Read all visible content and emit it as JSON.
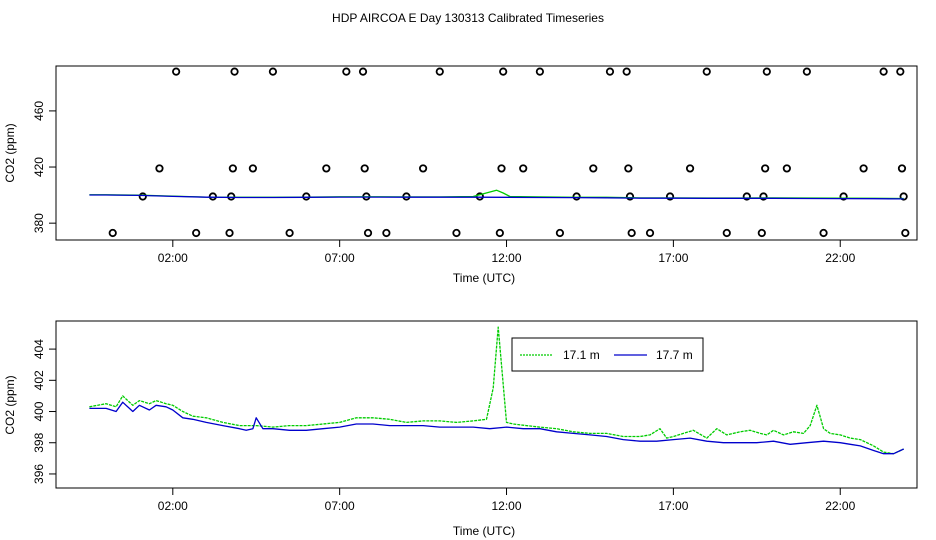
{
  "title": "HDP AIRCOA E  Day 130313  Calibrated Timeseries",
  "colors": {
    "green": "#00cc00",
    "blue": "#0000cc",
    "black": "#000000"
  },
  "chart_data": [
    {
      "type": "line+scatter",
      "xlabel": "Time (UTC)",
      "ylabel": "CO2 (ppm)",
      "xlim": [
        -1.5,
        24.3
      ],
      "ylim": [
        368,
        492
      ],
      "xticks": [
        2,
        7,
        12,
        17,
        22
      ],
      "xtick_labels": [
        "02:00",
        "07:00",
        "12:00",
        "17:00",
        "22:00"
      ],
      "yticks": [
        380,
        420,
        460
      ],
      "ytick_labels": [
        "380",
        "420",
        "460"
      ],
      "calibration_points": [
        {
          "x": 0.2,
          "y": 373
        },
        {
          "x": 1.1,
          "y": 399
        },
        {
          "x": 1.6,
          "y": 419
        },
        {
          "x": 2.1,
          "y": 488
        },
        {
          "x": 2.7,
          "y": 373
        },
        {
          "x": 3.2,
          "y": 399
        },
        {
          "x": 3.7,
          "y": 373
        },
        {
          "x": 3.75,
          "y": 399
        },
        {
          "x": 3.8,
          "y": 419
        },
        {
          "x": 3.85,
          "y": 488
        },
        {
          "x": 4.4,
          "y": 419
        },
        {
          "x": 5.0,
          "y": 488
        },
        {
          "x": 5.5,
          "y": 373
        },
        {
          "x": 6.0,
          "y": 399
        },
        {
          "x": 6.6,
          "y": 419
        },
        {
          "x": 7.2,
          "y": 488
        },
        {
          "x": 7.7,
          "y": 488
        },
        {
          "x": 7.75,
          "y": 419
        },
        {
          "x": 7.8,
          "y": 399
        },
        {
          "x": 7.85,
          "y": 373
        },
        {
          "x": 8.4,
          "y": 373
        },
        {
          "x": 9.0,
          "y": 399
        },
        {
          "x": 9.5,
          "y": 419
        },
        {
          "x": 10.0,
          "y": 488
        },
        {
          "x": 10.5,
          "y": 373
        },
        {
          "x": 11.2,
          "y": 399
        },
        {
          "x": 11.8,
          "y": 373
        },
        {
          "x": 11.85,
          "y": 419
        },
        {
          "x": 11.9,
          "y": 488
        },
        {
          "x": 12.5,
          "y": 419
        },
        {
          "x": 13.0,
          "y": 488
        },
        {
          "x": 13.6,
          "y": 373
        },
        {
          "x": 14.1,
          "y": 399
        },
        {
          "x": 14.6,
          "y": 419
        },
        {
          "x": 15.1,
          "y": 488
        },
        {
          "x": 15.6,
          "y": 488
        },
        {
          "x": 15.65,
          "y": 419
        },
        {
          "x": 15.7,
          "y": 399
        },
        {
          "x": 15.75,
          "y": 373
        },
        {
          "x": 16.3,
          "y": 373
        },
        {
          "x": 16.9,
          "y": 399
        },
        {
          "x": 17.5,
          "y": 419
        },
        {
          "x": 18.0,
          "y": 488
        },
        {
          "x": 18.6,
          "y": 373
        },
        {
          "x": 19.2,
          "y": 399
        },
        {
          "x": 19.65,
          "y": 373
        },
        {
          "x": 19.7,
          "y": 399
        },
        {
          "x": 19.75,
          "y": 419
        },
        {
          "x": 19.8,
          "y": 488
        },
        {
          "x": 20.4,
          "y": 419
        },
        {
          "x": 21.0,
          "y": 488
        },
        {
          "x": 21.5,
          "y": 373
        },
        {
          "x": 22.1,
          "y": 399
        },
        {
          "x": 22.7,
          "y": 419
        },
        {
          "x": 23.3,
          "y": 488
        },
        {
          "x": 23.8,
          "y": 488
        },
        {
          "x": 23.85,
          "y": 419
        },
        {
          "x": 23.9,
          "y": 399
        },
        {
          "x": 23.95,
          "y": 373
        }
      ],
      "series": [
        {
          "name": "17.1 m",
          "color": "#00cc00",
          "x": [
            -0.5,
            0,
            1,
            2,
            3,
            4,
            5,
            6,
            7,
            8,
            9,
            10,
            11,
            11.7,
            11.9,
            12.1,
            13,
            14,
            15,
            16,
            17,
            18,
            19,
            20,
            21,
            22,
            23,
            23.9
          ],
          "y": [
            400.2,
            400.2,
            399.9,
            399.3,
            398.6,
            398.4,
            398.4,
            398.6,
            398.8,
            398.8,
            398.7,
            398.7,
            399,
            403.5,
            401.5,
            399,
            398.7,
            398.4,
            398.4,
            398,
            398,
            397.9,
            397.9,
            398,
            397.9,
            397.8,
            397.7,
            397.6
          ]
        },
        {
          "name": "17.7 m",
          "color": "#0000cc",
          "x": [
            -0.5,
            0,
            1,
            2,
            3,
            4,
            5,
            6,
            7,
            8,
            9,
            10,
            11,
            12,
            13,
            14,
            15,
            16,
            17,
            18,
            19,
            20,
            21,
            22,
            23,
            23.9
          ],
          "y": [
            400.1,
            400.1,
            399.8,
            399.1,
            398.5,
            398.3,
            398.3,
            398.4,
            398.6,
            398.6,
            398.5,
            398.5,
            398.5,
            398.4,
            398.3,
            398.2,
            398.1,
            397.8,
            397.8,
            397.7,
            397.7,
            397.7,
            397.6,
            397.5,
            397.4,
            397.3
          ]
        }
      ]
    },
    {
      "type": "line",
      "xlabel": "Time (UTC)",
      "ylabel": "CO2 (ppm)",
      "xlim": [
        -1.5,
        24.3
      ],
      "ylim": [
        395.1,
        405.8
      ],
      "xticks": [
        2,
        7,
        12,
        17,
        22
      ],
      "xtick_labels": [
        "02:00",
        "07:00",
        "12:00",
        "17:00",
        "22:00"
      ],
      "yticks": [
        396,
        398,
        400,
        402,
        404
      ],
      "ytick_labels": [
        "396",
        "398",
        "400",
        "402",
        "404"
      ],
      "legend": {
        "placement": "top-right",
        "entries": [
          "17.1 m",
          "17.7 m"
        ]
      },
      "series": [
        {
          "name": "17.1 m",
          "color": "#00cc00",
          "x": [
            -0.5,
            0,
            0.3,
            0.5,
            0.8,
            1,
            1.3,
            1.5,
            1.8,
            2,
            2.3,
            2.6,
            3,
            3.5,
            4,
            4.5,
            5,
            5.5,
            6,
            6.5,
            7,
            7.5,
            8,
            8.5,
            9,
            9.5,
            10,
            10.5,
            11,
            11.4,
            11.6,
            11.75,
            11.85,
            12,
            12.2,
            12.6,
            13,
            13.5,
            14,
            14.5,
            15,
            15.5,
            16,
            16.3,
            16.6,
            16.8,
            17,
            17.3,
            17.6,
            18,
            18.3,
            18.6,
            19,
            19.3,
            19.6,
            19.8,
            20,
            20.3,
            20.6,
            20.9,
            21.1,
            21.3,
            21.5,
            21.7,
            22,
            22.3,
            22.6,
            23,
            23.3,
            23.6,
            23.9
          ],
          "y": [
            400.3,
            400.5,
            400.3,
            401.0,
            400.4,
            400.7,
            400.5,
            400.7,
            400.5,
            400.4,
            400.0,
            399.7,
            399.6,
            399.3,
            399.1,
            399.1,
            399.0,
            399.1,
            399.1,
            399.2,
            399.3,
            399.6,
            399.6,
            399.5,
            399.3,
            399.4,
            399.4,
            399.3,
            399.4,
            399.5,
            401.5,
            405.4,
            403.0,
            399.3,
            399.2,
            399.1,
            399.0,
            398.9,
            398.7,
            398.6,
            398.6,
            398.4,
            398.4,
            398.5,
            398.9,
            398.3,
            398.4,
            398.6,
            398.8,
            398.3,
            398.9,
            398.5,
            398.7,
            398.8,
            398.6,
            398.5,
            398.8,
            398.5,
            398.7,
            398.6,
            399.1,
            400.4,
            398.9,
            398.6,
            398.5,
            398.3,
            398.2,
            397.8,
            397.4,
            397.3,
            397.6
          ]
        },
        {
          "name": "17.7 m",
          "color": "#0000cc",
          "x": [
            -0.5,
            0,
            0.3,
            0.5,
            0.8,
            1,
            1.3,
            1.5,
            1.8,
            2,
            2.3,
            2.6,
            3,
            3.5,
            4,
            4.2,
            4.4,
            4.5,
            4.7,
            5,
            5.5,
            6,
            6.5,
            7,
            7.5,
            8,
            8.5,
            9,
            9.5,
            10,
            10.5,
            11,
            11.5,
            12,
            12.5,
            13,
            13.5,
            14,
            14.5,
            15,
            15.5,
            16,
            16.5,
            17,
            17.5,
            18,
            18.5,
            19,
            19.5,
            20,
            20.5,
            21,
            21.5,
            22,
            22.3,
            22.6,
            23,
            23.3,
            23.6,
            23.9
          ],
          "y": [
            400.2,
            400.2,
            400.0,
            400.6,
            400.0,
            400.4,
            400.1,
            400.4,
            400.3,
            400.1,
            399.6,
            399.5,
            399.3,
            399.1,
            398.9,
            398.8,
            398.9,
            399.6,
            398.9,
            398.9,
            398.8,
            398.8,
            398.9,
            399.0,
            399.2,
            399.2,
            399.1,
            399.1,
            399.1,
            399.0,
            399.0,
            399.0,
            398.9,
            399.0,
            398.9,
            398.9,
            398.7,
            398.6,
            398.5,
            398.4,
            398.2,
            398.1,
            398.1,
            398.2,
            398.3,
            398.1,
            398.0,
            398.0,
            398.0,
            398.1,
            397.9,
            398.0,
            398.1,
            398.0,
            397.9,
            397.8,
            397.5,
            397.3,
            397.3,
            397.6
          ]
        }
      ]
    }
  ]
}
